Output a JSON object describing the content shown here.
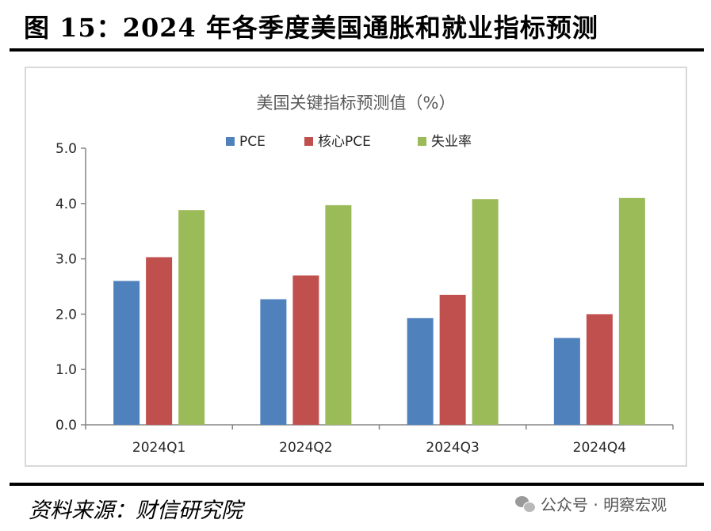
{
  "figure": {
    "title": "图 15：2024 年各季度美国通胀和就业指标预测",
    "source": "资料来源：财信研究院",
    "watermark": "公众号 · 明察宏观",
    "watermark_icon": "wechat-icon"
  },
  "chart_data": {
    "type": "bar",
    "title": "美国关键指标预测值（%）",
    "categories": [
      "2024Q1",
      "2024Q2",
      "2024Q3",
      "2024Q4"
    ],
    "series": [
      {
        "name": "PCE",
        "color": "#4f81bd",
        "values": [
          2.6,
          2.27,
          1.93,
          1.57
        ]
      },
      {
        "name": "核心PCE",
        "color": "#c0504d",
        "values": [
          3.03,
          2.7,
          2.35,
          2.0
        ]
      },
      {
        "name": "失业率",
        "color": "#9bbb59",
        "values": [
          3.88,
          3.97,
          4.08,
          4.1
        ]
      }
    ],
    "ylim": [
      0,
      5
    ],
    "yticks": [
      "0.0",
      "1.0",
      "2.0",
      "3.0",
      "4.0",
      "5.0"
    ],
    "grid": false,
    "legend": "top"
  }
}
